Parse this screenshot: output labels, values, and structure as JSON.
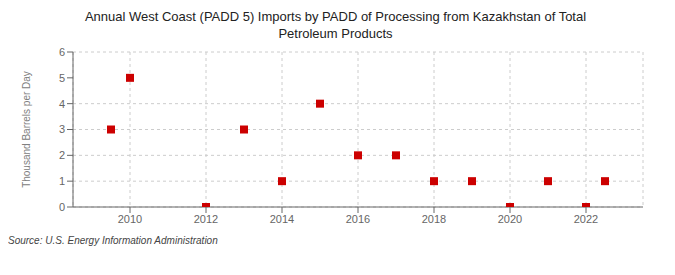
{
  "chart_data": {
    "type": "scatter",
    "title": "Annual West Coast (PADD 5) Imports by PADD of Processing from Kazakhstan of Total\nPetroleum Products",
    "ylabel": "Thousand Barrels per Day",
    "annotations": [
      "Source: U.S. Energy Information Administration"
    ],
    "x": [
      2009.5,
      2010,
      2012,
      2013,
      2014,
      2015,
      2016,
      2017,
      2018,
      2019,
      2020,
      2021,
      2022,
      2022.5
    ],
    "values": [
      3,
      5,
      0,
      3,
      1,
      4,
      2,
      2,
      1,
      1,
      0,
      1,
      0,
      1
    ],
    "color": "#cc0000",
    "marker": "square",
    "xlim": [
      2008.5,
      2023.5
    ],
    "ylim": [
      0,
      6
    ],
    "xticks": [
      2010,
      2012,
      2014,
      2016,
      2018,
      2020,
      2022
    ],
    "yticks": [
      0,
      1,
      2,
      3,
      4,
      5,
      6
    ],
    "grid": true
  }
}
